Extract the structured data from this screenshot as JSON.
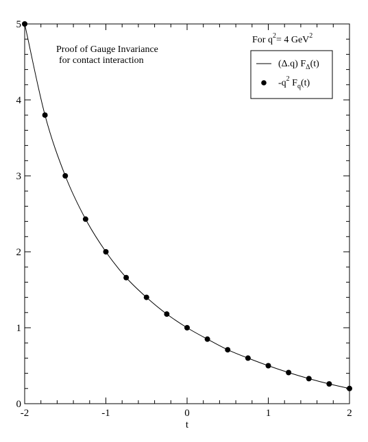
{
  "chart_data": {
    "type": "line",
    "xlabel": "t",
    "ylabel": "",
    "xlim": [
      -2,
      2
    ],
    "ylim": [
      0,
      5
    ],
    "x_ticks": [
      -2,
      -1,
      0,
      1,
      2
    ],
    "y_ticks": [
      0,
      1,
      2,
      3,
      4,
      5
    ],
    "x_tick_labels": [
      "-2",
      "-1",
      "0",
      "1",
      "2"
    ],
    "y_tick_labels": [
      "0",
      "1",
      "2",
      "3",
      "4",
      "5"
    ],
    "grid": false,
    "annotations": [
      {
        "id": "title1",
        "text": "Proof of Gauge Invariance"
      },
      {
        "id": "title2",
        "text": "for contact interaction"
      }
    ],
    "condition": {
      "prefix": "For q",
      "sup1": "2",
      "mid": "= 4 GeV",
      "sup2": "2"
    },
    "legend": {
      "placement": "top-right",
      "line_entry": {
        "pre": "(Δ.q) F",
        "sub": "Δ",
        "post": "(t)"
      },
      "marker_entry": {
        "pre": "-q",
        "sup": "2",
        "mid": " F",
        "sub": "q",
        "post": "(t)"
      }
    },
    "series": [
      {
        "style": "line",
        "x": [
          -2,
          -1.75,
          -1.5,
          -1.25,
          -1,
          -0.75,
          -0.5,
          -0.25,
          0,
          0.25,
          0.5,
          0.75,
          1,
          1.25,
          1.5,
          1.75,
          2
        ],
        "y": [
          5.0,
          3.8,
          3.0,
          2.43,
          2.0,
          1.66,
          1.4,
          1.18,
          1.0,
          0.85,
          0.71,
          0.6,
          0.5,
          0.41,
          0.33,
          0.26,
          0.2
        ]
      },
      {
        "style": "marker",
        "x": [
          -2,
          -1.75,
          -1.5,
          -1.25,
          -1,
          -0.75,
          -0.5,
          -0.25,
          0,
          0.25,
          0.5,
          0.75,
          1,
          1.25,
          1.5,
          1.75,
          2
        ],
        "y": [
          5.0,
          3.8,
          3.0,
          2.43,
          2.0,
          1.66,
          1.4,
          1.18,
          1.0,
          0.85,
          0.71,
          0.6,
          0.5,
          0.41,
          0.33,
          0.26,
          0.2
        ]
      }
    ]
  }
}
